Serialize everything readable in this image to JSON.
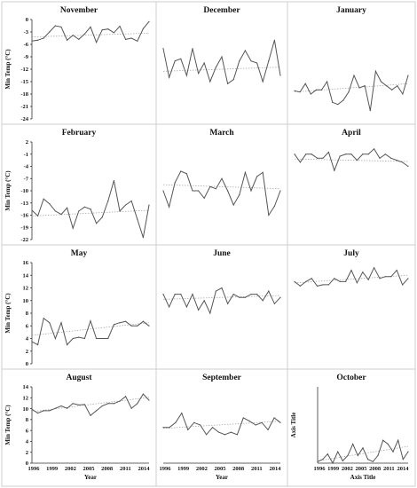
{
  "chart_data": [
    {
      "type": "line",
      "title": "November",
      "ylabel": "Min Temp (°C)",
      "xlabel": "",
      "ylim": [
        -24,
        0
      ],
      "ytick_labels": [
        "0",
        "-3",
        "-6",
        "-9",
        "-12",
        "-15",
        "-18",
        "-21",
        "-24"
      ],
      "xtick_labels": [],
      "trend": [
        -4.2,
        -3.3
      ],
      "values": [
        -5.2,
        -5.0,
        -4.5,
        -3.0,
        -1.5,
        -1.8,
        -5.0,
        -3.8,
        -4.8,
        -3.5,
        -1.8,
        -5.5,
        -2.5,
        -2.3,
        -3.2,
        -1.6,
        -4.8,
        -4.5,
        -5.2,
        -2.2,
        -0.5
      ]
    },
    {
      "type": "line",
      "title": "December",
      "ylabel": "",
      "xlabel": "",
      "ylim": [
        -24,
        0
      ],
      "ytick_labels": [],
      "xtick_labels": [],
      "trend": [
        -12.5,
        -11.5
      ],
      "values": [
        -7,
        -14,
        -10,
        -9.5,
        -13.5,
        -7,
        -13,
        -10.5,
        -15,
        -11.5,
        -9,
        -15.5,
        -14.5,
        -10,
        -7.5,
        -10,
        -10.5,
        -15,
        -10,
        -5,
        -13.5
      ]
    },
    {
      "type": "line",
      "title": "January",
      "ylabel": "",
      "xlabel": "",
      "ylim": [
        -24,
        0
      ],
      "ytick_labels": [],
      "xtick_labels": [],
      "trend": [
        -17.5,
        -15.5
      ],
      "values": [
        -17.2,
        -17.5,
        -15.5,
        -18,
        -17,
        -17,
        -15,
        -20,
        -20.5,
        -19.5,
        -17.5,
        -13.5,
        -16.5,
        -16,
        -22,
        -12.5,
        -15,
        -16,
        -17,
        -16,
        -18,
        -13.5
      ]
    },
    {
      "type": "line",
      "title": "February",
      "ylabel": "Min Temp (°C)",
      "xlabel": "",
      "ylim": [
        -22,
        2
      ],
      "ytick_labels": [
        "2",
        "-1",
        "-4",
        "-7",
        "-10",
        "-13",
        "-16",
        "-19",
        "-22"
      ],
      "xtick_labels": [],
      "trend": [
        -16.2,
        -14.8
      ],
      "values": [
        -14.8,
        -16.2,
        -12,
        -13.2,
        -15,
        -15.8,
        -14.2,
        -19.2,
        -15,
        -14,
        -14.5,
        -18,
        -16.5,
        -12.5,
        -7.5,
        -15,
        -13.5,
        -12.5,
        -17,
        -21.5,
        -13.5
      ]
    },
    {
      "type": "line",
      "title": "March",
      "ylabel": "",
      "xlabel": "",
      "ylim": [
        -22,
        2
      ],
      "ytick_labels": [],
      "xtick_labels": [],
      "trend": [
        -8.5,
        -9.5
      ],
      "values": [
        -10,
        -14,
        -8,
        -5.2,
        -5.8,
        -10,
        -10,
        -11.8,
        -9,
        -9.5,
        -7,
        -10,
        -13.5,
        -11,
        -5.5,
        -10,
        -6.5,
        -5.5,
        -16,
        -13.8,
        -10
      ]
    },
    {
      "type": "line",
      "title": "April",
      "ylabel": "",
      "xlabel": "",
      "ylim": [
        -22,
        2
      ],
      "ytick_labels": [],
      "xtick_labels": [],
      "trend": [
        -2.2,
        -2.8
      ],
      "values": [
        -1,
        -3,
        -1,
        -1,
        -2,
        -2,
        -0.5,
        -5,
        -1.5,
        -1,
        -1,
        -2.5,
        -1,
        -1,
        0.3,
        -2,
        -1,
        -2,
        -2.5,
        -3,
        -4
      ]
    },
    {
      "type": "line",
      "title": "May",
      "ylabel": "Min Temp (°C)",
      "xlabel": "",
      "ylim": [
        0,
        16
      ],
      "ytick_labels": [
        "16",
        "14",
        "12",
        "10",
        "8",
        "6",
        "4",
        "2",
        "0"
      ],
      "xtick_labels": [],
      "trend": [
        4.5,
        6.5
      ],
      "values": [
        3.5,
        3,
        7.2,
        6.5,
        4,
        6.5,
        3,
        4,
        4.2,
        4,
        6.8,
        4,
        4,
        4,
        6.2,
        6.5,
        6.7,
        6,
        6,
        6.7,
        6
      ]
    },
    {
      "type": "line",
      "title": "June",
      "ylabel": "",
      "xlabel": "",
      "ylim": [
        0,
        16
      ],
      "ytick_labels": [],
      "xtick_labels": [],
      "trend": [
        10.2,
        10.8
      ],
      "values": [
        11,
        9,
        11,
        11,
        9,
        11,
        8.5,
        10,
        8,
        11.5,
        12,
        9.5,
        11,
        10.5,
        10.5,
        11,
        11,
        10,
        11.5,
        9.5,
        10.5
      ]
    },
    {
      "type": "line",
      "title": "July",
      "ylabel": "",
      "xlabel": "",
      "ylim": [
        0,
        16
      ],
      "ytick_labels": [],
      "xtick_labels": [],
      "trend": [
        12.8,
        14.0
      ],
      "values": [
        13,
        12.3,
        13,
        13.5,
        12.3,
        12.5,
        12.5,
        13.5,
        13,
        13,
        14.8,
        12.8,
        14.5,
        13.3,
        15.2,
        13.5,
        13.8,
        13.8,
        14.8,
        12.5,
        13.5
      ]
    },
    {
      "type": "line",
      "title": "August",
      "ylabel": "Min Temp (°C)",
      "xlabel": "Year",
      "ylim": [
        0,
        16
      ],
      "ytick_labels": [
        "14",
        "12",
        "10",
        "8",
        "6",
        "4",
        "2",
        "0"
      ],
      "xtick_labels": [
        "1996",
        "1999",
        "2002",
        "2005",
        "2008",
        "2011",
        "2014"
      ],
      "trend": [
        10.8,
        13.8
      ],
      "values": [
        11.3,
        10.5,
        11,
        11,
        11.5,
        12,
        11.5,
        12.5,
        12.2,
        12.3,
        10,
        11,
        12,
        12.5,
        12.5,
        13,
        14,
        11.5,
        12.5,
        14.5,
        13.2
      ]
    },
    {
      "type": "line",
      "title": "September",
      "ylabel": "",
      "xlabel": "Year",
      "ylim": [
        0,
        16
      ],
      "ytick_labels": [],
      "xtick_labels": [
        "1996",
        "1999",
        "2002",
        "2005",
        "2008",
        "2011",
        "2014"
      ],
      "trend": [
        7.3,
        8.8
      ],
      "values": [
        7.5,
        7.5,
        8.5,
        10.5,
        7,
        8.5,
        8,
        6,
        7.5,
        6.5,
        6,
        6.5,
        6,
        9.5,
        8.8,
        8,
        8.5,
        7,
        9.5,
        8.5
      ]
    },
    {
      "type": "line",
      "title": "October",
      "ylabel": "Axis Title",
      "xlabel": "Axis Title",
      "ylim": [
        0,
        10
      ],
      "ytick_labels": [],
      "xtick_labels": [
        "1996",
        "1999",
        "2002",
        "2005",
        "2008",
        "2011",
        "2014"
      ],
      "trend": [
        0.3,
        2.2
      ],
      "values": [
        0.2,
        0.5,
        1.2,
        0.0,
        1.5,
        0.3,
        1.0,
        2.5,
        1.0,
        2.0,
        0.5,
        0.2,
        1.0,
        3.0,
        2.5,
        1.5,
        3.0,
        0.5,
        1.5
      ]
    }
  ]
}
